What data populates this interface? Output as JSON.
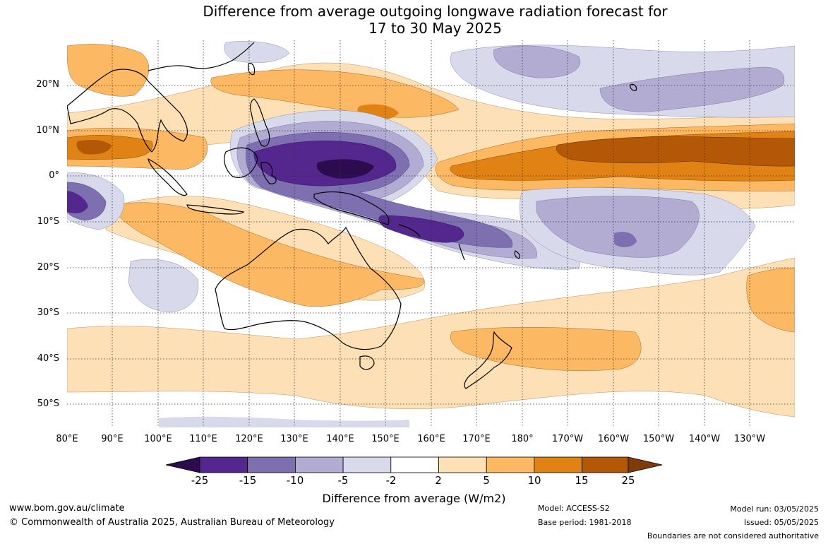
{
  "header": {
    "title_line1": "Difference from average outgoing longwave radiation forecast for",
    "title_line2": "17 to 30 May 2025"
  },
  "axes": {
    "lat_labels": [
      "20°N",
      "10°N",
      "0°",
      "10°S",
      "20°S",
      "30°S",
      "40°S",
      "50°S"
    ],
    "lon_labels": [
      "80°E",
      "90°E",
      "100°E",
      "110°E",
      "120°E",
      "130°E",
      "140°E",
      "150°E",
      "160°E",
      "170°E",
      "180°",
      "170°W",
      "160°W",
      "150°W",
      "140°W",
      "130°W"
    ]
  },
  "colorbar": {
    "title": "Difference from average (W/m2)",
    "ticks": [
      "-25",
      "-15",
      "-10",
      "-5",
      "-2",
      "2",
      "5",
      "10",
      "15",
      "25"
    ],
    "colors": [
      "#2d0b4f",
      "#54278f",
      "#7e6fb1",
      "#b2abd2",
      "#d8daeb",
      "#ffffff",
      "#fee0b6",
      "#fdb863",
      "#e08214",
      "#b35806",
      "#7f3b08"
    ]
  },
  "footer": {
    "url": "www.bom.gov.au/climate",
    "copyright": "© Commonwealth of Australia 2025, Australian Bureau of Meteorology",
    "model": "Model: ACCESS-S2",
    "base_period": "Base period: 1981-2018",
    "model_run": "Model run: 03/05/2025",
    "issued": "Issued: 05/05/2025",
    "disclaimer": "Boundaries are not considered authoritative"
  }
}
